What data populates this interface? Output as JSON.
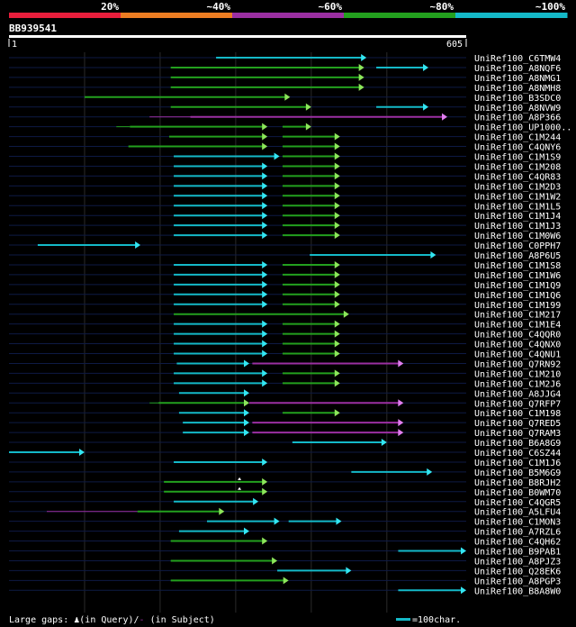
{
  "identity_scale": {
    "labels": [
      "20%",
      "~40%",
      "~60%",
      "~80%",
      "~100%"
    ],
    "colors": [
      "#e81e3c",
      "#ec7d22",
      "#9b2fa2",
      "#23a01e",
      "#14b9c8"
    ]
  },
  "query": {
    "name": "BB939541",
    "start_label": "1",
    "end_label": "605"
  },
  "scale": {
    "length": 605
  },
  "rows": [
    {
      "name": "UniRef100_C6TMW4",
      "segs": [
        [
          274,
          473,
          "c",
          "a"
        ]
      ]
    },
    {
      "name": "UniRef100_A8NQF6",
      "segs": [
        [
          214,
          470,
          "g",
          "a"
        ],
        [
          486,
          555,
          "c",
          "a"
        ]
      ]
    },
    {
      "name": "UniRef100_A8NMG1",
      "segs": [
        [
          214,
          470,
          "g",
          "a"
        ]
      ]
    },
    {
      "name": "UniRef100_A8NMH8",
      "segs": [
        [
          214,
          470,
          "g",
          "a"
        ]
      ]
    },
    {
      "name": "UniRef100_B3SDC0",
      "segs": [
        [
          100,
          372,
          "g",
          "a"
        ]
      ]
    },
    {
      "name": "UniRef100_A8NVW9",
      "segs": [
        [
          214,
          400,
          "g",
          "a"
        ],
        [
          486,
          555,
          "c",
          "a"
        ]
      ]
    },
    {
      "name": "UniRef100_A8P366",
      "segs": [
        [
          186,
          240,
          "m",
          "l"
        ],
        [
          240,
          580,
          "m",
          "a"
        ]
      ]
    },
    {
      "name": "UniRef100_UP1000..",
      "segs": [
        [
          142,
          160,
          "g",
          "l"
        ],
        [
          160,
          342,
          "g",
          "a"
        ],
        [
          362,
          400,
          "g",
          "a"
        ]
      ]
    },
    {
      "name": "UniRef100_C1M244",
      "segs": [
        [
          212,
          342,
          "g",
          "a"
        ],
        [
          362,
          438,
          "g",
          "a"
        ]
      ]
    },
    {
      "name": "UniRef100_C4QNY6",
      "segs": [
        [
          158,
          342,
          "g",
          "a"
        ],
        [
          362,
          438,
          "g",
          "a"
        ]
      ]
    },
    {
      "name": "UniRef100_C1M1S9",
      "segs": [
        [
          218,
          358,
          "c",
          "a"
        ],
        [
          362,
          438,
          "g",
          "a"
        ]
      ]
    },
    {
      "name": "UniRef100_C1M208",
      "segs": [
        [
          218,
          342,
          "c",
          "a"
        ],
        [
          362,
          438,
          "g",
          "a"
        ]
      ]
    },
    {
      "name": "UniRef100_C4QR83",
      "segs": [
        [
          218,
          342,
          "c",
          "a"
        ],
        [
          362,
          438,
          "g",
          "a"
        ]
      ]
    },
    {
      "name": "UniRef100_C1M2D3",
      "segs": [
        [
          218,
          342,
          "c",
          "a"
        ],
        [
          362,
          438,
          "g",
          "a"
        ]
      ]
    },
    {
      "name": "UniRef100_C1M1W2",
      "segs": [
        [
          218,
          342,
          "c",
          "a"
        ],
        [
          362,
          438,
          "g",
          "a"
        ]
      ]
    },
    {
      "name": "UniRef100_C1M1L5",
      "segs": [
        [
          218,
          342,
          "c",
          "a"
        ],
        [
          362,
          438,
          "g",
          "a"
        ]
      ]
    },
    {
      "name": "UniRef100_C1M1J4",
      "segs": [
        [
          218,
          342,
          "c",
          "a"
        ],
        [
          362,
          438,
          "g",
          "a"
        ]
      ]
    },
    {
      "name": "UniRef100_C1M1J3",
      "segs": [
        [
          218,
          342,
          "c",
          "a"
        ],
        [
          362,
          438,
          "g",
          "a"
        ]
      ]
    },
    {
      "name": "UniRef100_C1M0W6",
      "segs": [
        [
          218,
          342,
          "c",
          "a"
        ],
        [
          362,
          438,
          "g",
          "a"
        ]
      ]
    },
    {
      "name": "UniRef100_C0PPH7",
      "segs": [
        [
          38,
          174,
          "c",
          "a"
        ]
      ]
    },
    {
      "name": "UniRef100_A8P6U5",
      "segs": [
        [
          398,
          565,
          "c",
          "a"
        ]
      ]
    },
    {
      "name": "UniRef100_C1M1S8",
      "segs": [
        [
          218,
          342,
          "c",
          "a"
        ],
        [
          362,
          438,
          "g",
          "a"
        ]
      ]
    },
    {
      "name": "UniRef100_C1M1W6",
      "segs": [
        [
          218,
          342,
          "c",
          "a"
        ],
        [
          362,
          438,
          "g",
          "a"
        ]
      ]
    },
    {
      "name": "UniRef100_C1M1Q9",
      "segs": [
        [
          218,
          342,
          "c",
          "a"
        ],
        [
          362,
          438,
          "g",
          "a"
        ]
      ]
    },
    {
      "name": "UniRef100_C1M1Q6",
      "segs": [
        [
          218,
          342,
          "c",
          "a"
        ],
        [
          362,
          438,
          "g",
          "a"
        ]
      ]
    },
    {
      "name": "UniRef100_C1M199",
      "segs": [
        [
          218,
          342,
          "c",
          "a"
        ],
        [
          362,
          438,
          "g",
          "a"
        ]
      ]
    },
    {
      "name": "UniRef100_C1M217",
      "segs": [
        [
          218,
          450,
          "g",
          "a"
        ]
      ]
    },
    {
      "name": "UniRef100_C1M1E4",
      "segs": [
        [
          218,
          342,
          "c",
          "a"
        ],
        [
          362,
          438,
          "g",
          "a"
        ]
      ]
    },
    {
      "name": "UniRef100_C4QQR0",
      "segs": [
        [
          218,
          342,
          "c",
          "a"
        ],
        [
          362,
          438,
          "g",
          "a"
        ]
      ]
    },
    {
      "name": "UniRef100_C4QNX0",
      "segs": [
        [
          218,
          342,
          "c",
          "a"
        ],
        [
          362,
          438,
          "g",
          "a"
        ]
      ]
    },
    {
      "name": "UniRef100_C4QNU1",
      "segs": [
        [
          218,
          342,
          "c",
          "a"
        ],
        [
          362,
          438,
          "g",
          "a"
        ]
      ]
    },
    {
      "name": "UniRef100_Q7RN92",
      "segs": [
        [
          222,
          318,
          "c",
          "a"
        ],
        [
          322,
          522,
          "m",
          "a"
        ]
      ]
    },
    {
      "name": "UniRef100_C1M210",
      "segs": [
        [
          218,
          342,
          "c",
          "a"
        ],
        [
          362,
          438,
          "g",
          "a"
        ]
      ]
    },
    {
      "name": "UniRef100_C1M2J6",
      "segs": [
        [
          218,
          342,
          "c",
          "a"
        ],
        [
          362,
          438,
          "g",
          "a"
        ]
      ]
    },
    {
      "name": "UniRef100_A8JJG4",
      "segs": [
        [
          225,
          318,
          "c",
          "a"
        ]
      ]
    },
    {
      "name": "UniRef100_Q7RFP7",
      "segs": [
        [
          186,
          198,
          "g",
          "l"
        ],
        [
          198,
          318,
          "g",
          "a"
        ],
        [
          318,
          522,
          "m",
          "a"
        ]
      ]
    },
    {
      "name": "UniRef100_C1M198",
      "segs": [
        [
          225,
          318,
          "c",
          "a"
        ],
        [
          362,
          438,
          "g",
          "a"
        ]
      ]
    },
    {
      "name": "UniRef100_Q7RED5",
      "segs": [
        [
          230,
          318,
          "c",
          "a"
        ],
        [
          322,
          522,
          "m",
          "a"
        ]
      ]
    },
    {
      "name": "UniRef100_Q7RAM3",
      "segs": [
        [
          230,
          318,
          "c",
          "a"
        ],
        [
          322,
          522,
          "m",
          "a"
        ]
      ]
    },
    {
      "name": "UniRef100_B6A8G9",
      "segs": [
        [
          375,
          500,
          "c",
          "a"
        ]
      ]
    },
    {
      "name": "UniRef100_C6SZ44",
      "segs": [
        [
          0,
          100,
          "c",
          "a"
        ]
      ]
    },
    {
      "name": "UniRef100_C1M1J6",
      "segs": [
        [
          218,
          342,
          "c",
          "a"
        ]
      ]
    },
    {
      "name": "UniRef100_B5M6G9",
      "segs": [
        [
          453,
          560,
          "c",
          "a"
        ]
      ]
    },
    {
      "name": "UniRef100_B8RJH2",
      "segs": [
        [
          205,
          342,
          "g",
          "a"
        ]
      ],
      "gap": 305
    },
    {
      "name": "UniRef100_B0WM70",
      "segs": [
        [
          205,
          342,
          "g",
          "a"
        ]
      ],
      "gap": 305
    },
    {
      "name": "UniRef100_C4QGR5",
      "segs": [
        [
          218,
          330,
          "c",
          "a"
        ]
      ]
    },
    {
      "name": "UniRef100_A5LFU4",
      "segs": [
        [
          50,
          170,
          "m",
          "l"
        ],
        [
          170,
          285,
          "g",
          "a"
        ]
      ]
    },
    {
      "name": "UniRef100_C1MON3",
      "segs": [
        [
          262,
          358,
          "c",
          "a"
        ],
        [
          370,
          440,
          "c",
          "a"
        ]
      ]
    },
    {
      "name": "UniRef100_A7RZL6",
      "segs": [
        [
          225,
          318,
          "c",
          "a"
        ]
      ]
    },
    {
      "name": "UniRef100_C4QH62",
      "segs": [
        [
          214,
          342,
          "g",
          "a"
        ]
      ]
    },
    {
      "name": "UniRef100_B9PAB1",
      "segs": [
        [
          515,
          605,
          "c",
          "a"
        ]
      ]
    },
    {
      "name": "UniRef100_A8PJZ3",
      "segs": [
        [
          214,
          355,
          "g",
          "a"
        ]
      ]
    },
    {
      "name": "UniRef100_Q28EK6",
      "segs": [
        [
          355,
          453,
          "c",
          "a"
        ]
      ]
    },
    {
      "name": "UniRef100_A8PGP3",
      "segs": [
        [
          214,
          370,
          "g",
          "a"
        ]
      ]
    },
    {
      "name": "UniRef100_B8A8W0",
      "segs": [
        [
          515,
          605,
          "c",
          "a"
        ]
      ]
    }
  ],
  "footer": {
    "gap_text": "Large gaps: ",
    "in_query_text": "(in Query)/",
    "dash_text": "-",
    "in_subject_text": " (in Subject)",
    "legend_text": "=100char."
  }
}
